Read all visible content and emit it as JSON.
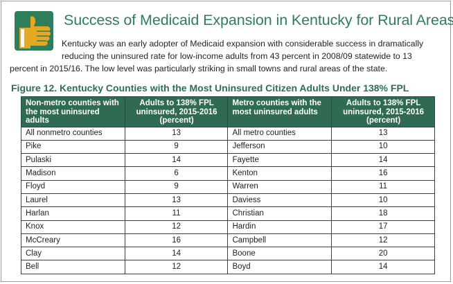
{
  "header": {
    "title": "Success of Medicaid Expansion in Kentucky for Rural Areas",
    "icon": "thumbs-up-icon",
    "intro_lines": [
      "Kentucky was an early adopter of Medicaid expansion with considerable success in dramatically",
      "reducing the uninsured rate for low-income adults from 43 percent in 2008/09 statewide to 13",
      "percent in 2015/16. The low level was particularly striking in small towns and rural areas of the state."
    ]
  },
  "figure": {
    "caption": "Figure 12. Kentucky Counties with the Most Uninsured Citizen Adults Under 138% FPL",
    "columns": [
      "Non-metro counties with the most uninsured adults",
      "Adults to 138% FPL uninsured, 2015-2016 (percent)",
      "Metro counties with the most uninsured adults",
      "Adults to 138% FPL uninsured, 2015-2016 (percent)"
    ],
    "rows": [
      [
        "All nonmetro counties",
        "13",
        "All metro counties",
        "13"
      ],
      [
        "Pike",
        "9",
        "Jefferson",
        "10"
      ],
      [
        "Pulaski",
        "14",
        "Fayette",
        "14"
      ],
      [
        "Madison",
        "6",
        "Kenton",
        "16"
      ],
      [
        "Floyd",
        "9",
        "Warren",
        "11"
      ],
      [
        "Laurel",
        "13",
        "Daviess",
        "10"
      ],
      [
        "Harlan",
        "11",
        "Christian",
        "18"
      ],
      [
        "Knox",
        "12",
        "Hardin",
        "17"
      ],
      [
        "McCreary",
        "16",
        "Campbell",
        "12"
      ],
      [
        "Clay",
        "14",
        "Boone",
        "20"
      ],
      [
        "Bell",
        "12",
        "Boyd",
        "14"
      ]
    ]
  },
  "colors": {
    "title": "#2e7d5b",
    "header_bg": "#2f6b52",
    "icon_square": "#2e7d5b",
    "icon_hand": "#e5a823"
  }
}
